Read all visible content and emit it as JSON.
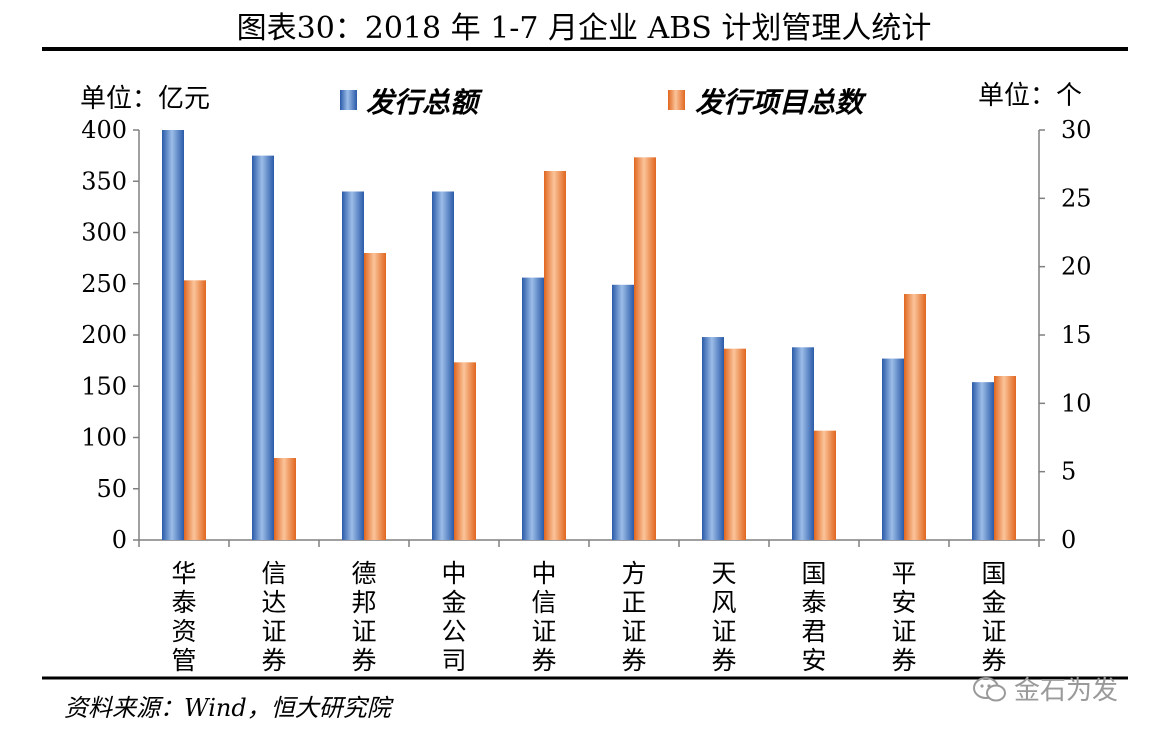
{
  "chart_data": {
    "type": "bar",
    "title": "图表30：2018 年 1-7 月企业 ABS 计划管理人统计",
    "left_unit": "单位：亿元",
    "right_unit": "单位：个",
    "categories": [
      "华泰资管",
      "信达证券",
      "德邦证券",
      "中金公司",
      "中信证券",
      "方正证券",
      "天风证券",
      "国泰君安",
      "平安证券",
      "国金证券"
    ],
    "series": [
      {
        "name": "发行总额",
        "axis": "left",
        "color": "#4472C4",
        "values": [
          400,
          375,
          340,
          340,
          256,
          249,
          198,
          188,
          177,
          154
        ]
      },
      {
        "name": "发行项目总数",
        "axis": "right",
        "color": "#ED7D31",
        "values": [
          19,
          6,
          21,
          13,
          27,
          28,
          14,
          8,
          18,
          12
        ]
      }
    ],
    "y_left": {
      "min": 0,
      "max": 400,
      "ticks": [
        0,
        50,
        100,
        150,
        200,
        250,
        300,
        350,
        400
      ]
    },
    "y_right": {
      "min": 0,
      "max": 30,
      "ticks": [
        0,
        5,
        10,
        15,
        20,
        25,
        30
      ]
    },
    "legend_position": "top-center",
    "grid": false
  },
  "footer": {
    "source": "资料来源：Wind，恒大研究院",
    "watermark": "金石为发"
  }
}
